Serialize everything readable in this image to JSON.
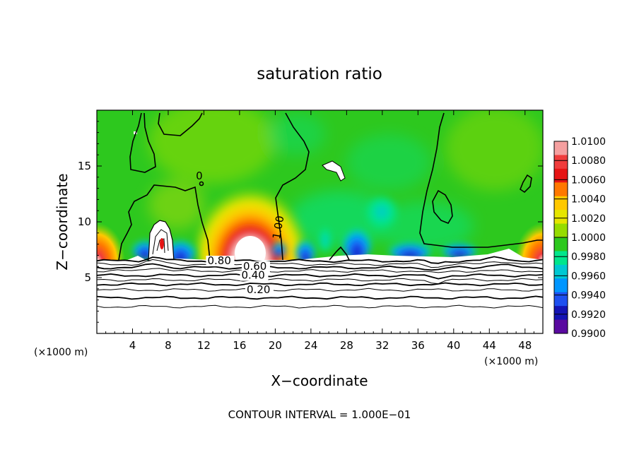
{
  "chart_data": {
    "type": "heatmap",
    "title": "saturation ratio",
    "xlabel": "X−coordinate",
    "ylabel": "Z−coordinate",
    "x_unit_label": "(×1000 m)",
    "y_unit_label": "(×1000 m)",
    "xlim": [
      0,
      50
    ],
    "ylim": [
      0,
      20
    ],
    "x_ticks": [
      4,
      8,
      12,
      16,
      20,
      24,
      28,
      32,
      36,
      40,
      44,
      48
    ],
    "y_ticks": [
      5,
      10,
      15
    ],
    "footnote": "CONTOUR INTERVAL = 1.000E−01",
    "colorbar": {
      "labels": [
        "1.0100",
        "1.0080",
        "1.0060",
        "1.0040",
        "1.0020",
        "1.0000",
        "0.9980",
        "0.9960",
        "0.9940",
        "0.9920",
        "0.9900"
      ],
      "colors": [
        "#f5a0a0",
        "#f03c3c",
        "#e61414",
        "#ff7800",
        "#ffc800",
        "#e6e600",
        "#96dc00",
        "#2dc81e",
        "#00e68c",
        "#00c8d2",
        "#0096ff",
        "#1e50f0",
        "#1414b4",
        "#5a0aa0"
      ]
    },
    "contour_labels": [
      {
        "text": "0.80",
        "x": 12.4,
        "y": 6.2
      },
      {
        "text": "0.60",
        "x": 16.4,
        "y": 5.7
      },
      {
        "text": "0.40",
        "x": 16.2,
        "y": 4.9
      },
      {
        "text": "0.20",
        "x": 16.8,
        "y": 3.6
      },
      {
        "text": "1.00",
        "x": 20.5,
        "y": 8.4
      },
      {
        "text": "0",
        "x": 11.1,
        "y": 13.8
      }
    ],
    "lower_contours_y": [
      6.5,
      6.2,
      5.9,
      5.6,
      5.2,
      4.8,
      4.4,
      3.9,
      3.2,
      2.4
    ],
    "cloud_base_y": 6.7
  }
}
